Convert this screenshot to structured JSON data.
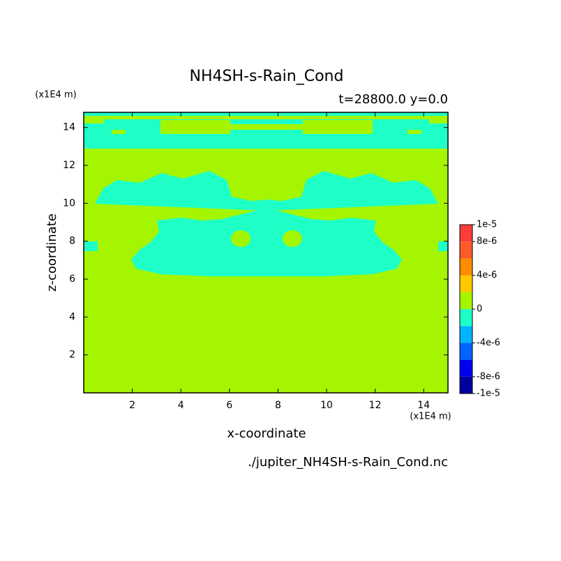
{
  "chart_data": {
    "type": "contour",
    "title": "NH4SH-s-Rain_Cond",
    "subtitle": "t=28800.0 y=0.0",
    "x_label": "x-coordinate",
    "y_label": "z-coordinate",
    "x_unit": "(x1E4 m)",
    "y_unit": "(x1E4 m)",
    "source": "./jupiter_NH4SH-s-Rain_Cond.nc",
    "xlim": [
      0,
      15
    ],
    "ylim": [
      0,
      14.8
    ],
    "xticks": [
      2,
      4,
      6,
      8,
      10,
      12,
      14
    ],
    "yticks": [
      2,
      4,
      6,
      8,
      10,
      12,
      14
    ],
    "levels": [
      -1e-05,
      -8e-06,
      -6e-06,
      -4e-06,
      -2e-06,
      0,
      2e-06,
      4e-06,
      6e-06,
      8e-06,
      1e-05
    ],
    "colors": [
      "#0000a0",
      "#0000f0",
      "#0064ff",
      "#00b4ff",
      "#1effc8",
      "#a5f500",
      "#ffc800",
      "#ff8c00",
      "#ff5a28",
      "#ff3c3c"
    ],
    "colorbar_ticks": [
      {
        "value": 1e-05,
        "label": "1e-5"
      },
      {
        "value": 8e-06,
        "label": "8e-6"
      },
      {
        "value": 4e-06,
        "label": "4e-6"
      },
      {
        "value": 0,
        "label": "0"
      },
      {
        "value": -4e-06,
        "label": "-4e-6"
      },
      {
        "value": -8e-06,
        "label": "-8e-6"
      },
      {
        "value": -1e-05,
        "label": "-1e-5"
      }
    ]
  }
}
